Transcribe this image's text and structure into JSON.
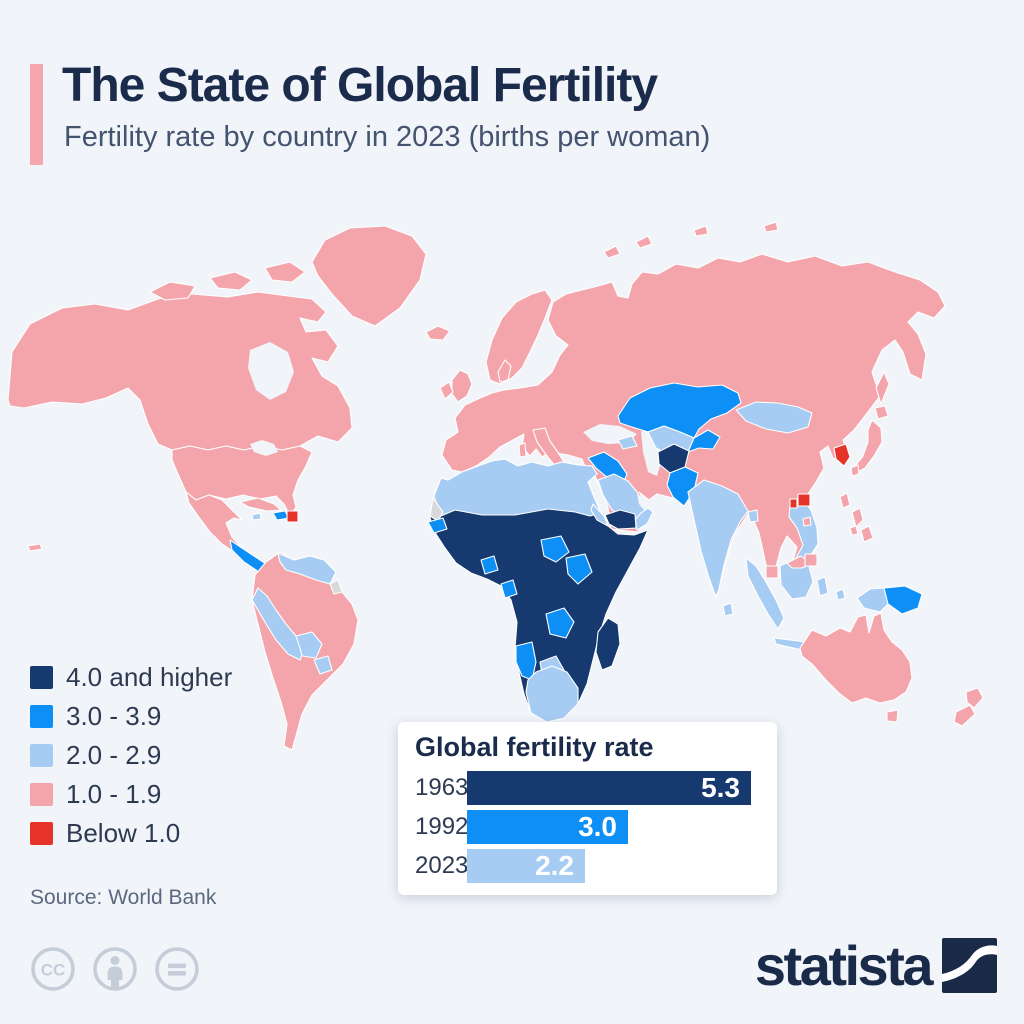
{
  "palette": {
    "background": "#F1F4F9",
    "cat4": "#16396F",
    "cat3": "#0E8FF5",
    "cat2": "#A7CCF3",
    "cat1": "#F3A5AB",
    "cat0": "#E6332A",
    "nodata": "#D9D9D9",
    "accent": "#F5A6AE",
    "title_color": "#1B2B4C",
    "subtitle_color": "#44536F",
    "text_color": "#2E3A52",
    "source_color": "#5A6880",
    "brand_color": "#1A2B49",
    "cc_gray": "#C5CDD9",
    "card_bg": "#FFFFFF"
  },
  "header": {
    "title": "The State of Global Fertility",
    "subtitle": "Fertility rate by country in 2023 (births per woman)"
  },
  "legend": {
    "items": [
      {
        "label": "4.0 and higher",
        "color": "#16396F"
      },
      {
        "label": "3.0 - 3.9",
        "color": "#0E8FF5"
      },
      {
        "label": "2.0 - 2.9",
        "color": "#A7CCF3"
      },
      {
        "label": "1.0 - 1.9",
        "color": "#F3A5AB"
      },
      {
        "label": "Below 1.0",
        "color": "#E6332A"
      }
    ]
  },
  "inset": {
    "title": "Global fertility rate",
    "rows": [
      {
        "year": "1963",
        "value": 5.3,
        "value_label": "5.3",
        "color": "#16396F"
      },
      {
        "year": "1992",
        "value": 3.0,
        "value_label": "3.0",
        "color": "#0E8FF5"
      },
      {
        "year": "2023",
        "value": 2.2,
        "value_label": "2.2",
        "color": "#A7CCF3"
      }
    ]
  },
  "source": {
    "text": "Source: World Bank"
  },
  "footer": {
    "brand": "statista",
    "license_icons": [
      "cc-icon",
      "attribution-person-icon",
      "no-derivatives-equals-icon"
    ]
  },
  "chart_data": [
    {
      "type": "heatmap",
      "subtype": "choropleth_world_map",
      "title": "The State of Global Fertility",
      "subtitle": "Fertility rate by country in 2023 (births per woman)",
      "metric": "Fertility rate (births per woman)",
      "year": 2023,
      "legend_position": "bottom-left",
      "categories": [
        {
          "label": "4.0 and higher",
          "color": "#16396F"
        },
        {
          "label": "3.0 - 3.9",
          "color": "#0E8FF5"
        },
        {
          "label": "2.0 - 2.9",
          "color": "#A7CCF3"
        },
        {
          "label": "1.0 - 1.9",
          "color": "#F3A5AB"
        },
        {
          "label": "Below 1.0",
          "color": "#E6332A"
        }
      ],
      "regions": {
        "4.0 and higher": [
          "Most of Sub-Saharan Africa (Mali, Niger, Chad, Sudan, Nigeria, DR Congo, Angola, Mozambique, Tanzania, Ethiopia, Somalia)",
          "Madagascar",
          "Yemen",
          "Afghanistan"
        ],
        "3.0 - 3.9": [
          "Kazakhstan",
          "Kyrgyzstan/Tajikistan",
          "Iraq",
          "Syria",
          "Pakistan",
          "Papua New Guinea",
          "Senegal",
          "Ghana",
          "Gabon",
          "South Sudan",
          "Kenya",
          "Zambia",
          "Zimbabwe",
          "Namibia",
          "Central America",
          "Hispaniola"
        ],
        "2.0 - 2.9": [
          "North Africa (Morocco, Algeria, Libya, Egypt)",
          "Saudi Arabia",
          "Oman",
          "Jordan",
          "India",
          "Bangladesh",
          "Sri Lanka",
          "Mongolia",
          "Uzbekistan",
          "Turkmenistan",
          "Caucasus",
          "Vietnam",
          "Laos",
          "Cambodia",
          "Indonesia",
          "South Africa",
          "Botswana",
          "Eritrea",
          "Venezuela",
          "Guyana",
          "Ecuador",
          "Peru",
          "Bolivia",
          "Paraguay",
          "Jamaica"
        ],
        "1.0 - 1.9": [
          "United States",
          "Canada",
          "Alaska",
          "Greenland",
          "Mexico",
          "Cuba",
          "Colombia",
          "Brazil",
          "Argentina",
          "Chile",
          "Uruguay",
          "Europe",
          "Russia",
          "Turkey",
          "Iran",
          "China",
          "Japan",
          "North Korea",
          "Taiwan",
          "Thailand",
          "Myanmar",
          "Malaysia",
          "Singapore",
          "Brunei",
          "Philippines",
          "Australia",
          "New Zealand"
        ],
        "Below 1.0": [
          "South Korea",
          "Hong Kong",
          "Macau",
          "Puerto Rico"
        ]
      },
      "no_data": [
        "Western Sahara",
        "French Guiana"
      ],
      "source": "World Bank"
    },
    {
      "type": "bar",
      "orientation": "horizontal",
      "title": "Global fertility rate",
      "categories": [
        "1963",
        "1992",
        "2023"
      ],
      "values": [
        5.3,
        3.0,
        2.2
      ],
      "value_labels": [
        "5.3",
        "3.0",
        "2.2"
      ],
      "bar_colors": [
        "#16396F",
        "#0E8FF5",
        "#A7CCF3"
      ],
      "xlim": [
        0,
        5.5
      ],
      "grid": false,
      "value_label_position": "inside-right"
    }
  ]
}
